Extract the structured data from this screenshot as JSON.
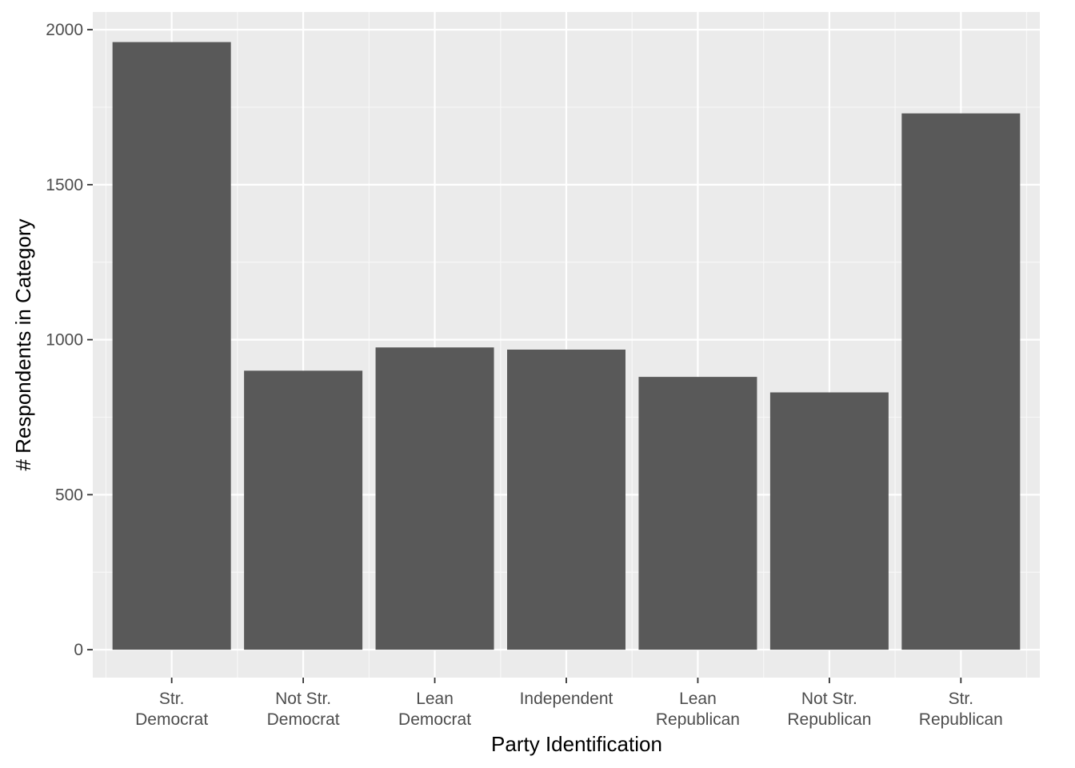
{
  "chart_data": {
    "type": "bar",
    "title": "",
    "xlabel": "Party Identification",
    "ylabel": "# Respondents in Category",
    "categories": [
      [
        "Str.",
        "Democrat"
      ],
      [
        "Not Str.",
        "Democrat"
      ],
      [
        "Lean",
        "Democrat"
      ],
      [
        "Independent"
      ],
      [
        "Lean",
        "Republican"
      ],
      [
        "Not Str.",
        "Republican"
      ],
      [
        "Str.",
        "Republican"
      ]
    ],
    "values": [
      1960,
      900,
      975,
      968,
      880,
      830,
      1730
    ],
    "ylim": [
      -90,
      2057
    ],
    "yticks": [
      0,
      500,
      1000,
      1500,
      2000
    ],
    "grid": true,
    "legend": "none",
    "colors": {
      "panel_background": "#ebebeb",
      "grid_major": "#ffffff",
      "grid_minor": "#f7f7f7",
      "bar_fill": "#595959",
      "tick_text": "#4d4d4d",
      "tick_mark": "#333333",
      "title_text": "#000000"
    }
  }
}
